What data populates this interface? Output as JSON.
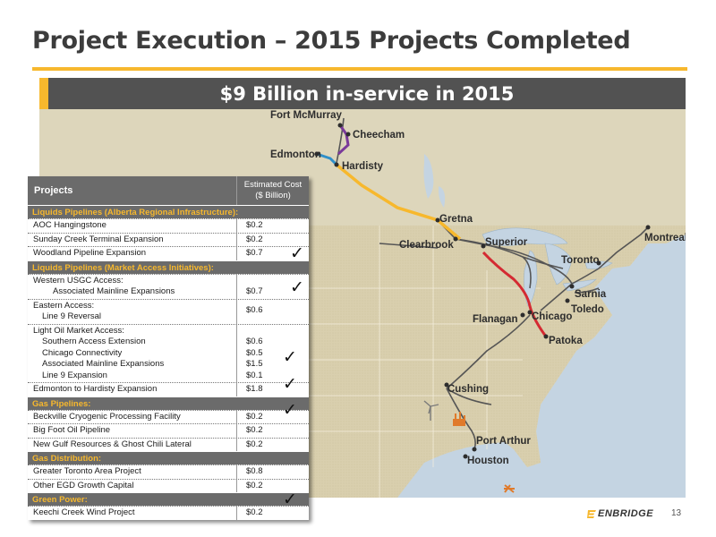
{
  "slide": {
    "title": "Project Execution – 2015 Projects Completed",
    "banner": "$9 Billion in-service in 2015",
    "page_number": "13",
    "logo_text": "ENBRIDGE"
  },
  "colors": {
    "accent": "#f7b82d",
    "header_gray": "#525252",
    "table_gray": "#6b6b6b",
    "map_land": "#d8cfae",
    "map_land_canada": "#ddd6bb",
    "map_water": "#c4d4e2",
    "pipeline_orange": "#f7b82d",
    "pipeline_red": "#d42a32",
    "pipeline_purple": "#7a3a9a",
    "pipeline_blue": "#2e8fc9",
    "pipeline_existing": "#555555"
  },
  "map": {
    "cities": [
      "Fort McMurray",
      "Cheecham",
      "Edmonton",
      "Hardisty",
      "Gretna",
      "Clearbrook",
      "Superior",
      "Montreal",
      "Toronto",
      "Sarnia",
      "Toledo",
      "Chicago",
      "Flanagan",
      "Patoka",
      "Cushing",
      "Port Arthur",
      "Houston"
    ],
    "icons": [
      "wind-turbine-icon",
      "gas-plant-icon",
      "offshore-platform-icon"
    ]
  },
  "table": {
    "header_project": "Projects",
    "header_cost_line1": "Estimated Cost",
    "header_cost_line2": "($ Billion)",
    "sections": [
      {
        "title": "Liquids Pipelines (Alberta Regional Infrastructure):",
        "rows": [
          {
            "name": "AOC Hangingstone",
            "cost": "$0.2"
          },
          {
            "name": "Sunday Creek Terminal Expansion",
            "cost": "$0.2"
          },
          {
            "name": "Woodland Pipeline Expansion",
            "cost": "$0.7"
          }
        ]
      },
      {
        "title": "Liquids Pipelines (Market Access Initiatives):",
        "western_label": "Western USGC Access:",
        "western_item": "Associated Mainline Expansions",
        "western_cost": "$0.7",
        "eastern_label": "Eastern Access:",
        "eastern_item": "Line 9 Reversal",
        "eastern_cost": "$0.6",
        "light_label": "Light Oil Market Access:",
        "light_items": [
          "Southern Access Extension",
          "Chicago Connectivity",
          "Associated Mainline Expansions",
          "Line 9 Expansion"
        ],
        "light_costs": [
          "$0.6",
          "$0.5",
          "$1.5",
          "$0.1"
        ],
        "hardisty": {
          "name": "Edmonton to Hardisty Expansion",
          "cost": "$1.8"
        }
      },
      {
        "title": "Gas Pipelines:",
        "rows": [
          {
            "name": "Beckville Cryogenic Processing Facility",
            "cost": "$0.2"
          },
          {
            "name": "Big Foot Oil Pipeline",
            "cost": "$0.2"
          },
          {
            "name": "New Gulf Resources & Ghost Chili Lateral",
            "cost": "$0.2"
          }
        ]
      },
      {
        "title": "Gas Distribution:",
        "rows": [
          {
            "name": "Greater Toronto Area Project",
            "cost": "$0.8"
          },
          {
            "name": "Other EGD Growth  Capital",
            "cost": "$0.2"
          }
        ]
      },
      {
        "title": "Green Power:",
        "rows": [
          {
            "name": "Keechi Creek Wind Project",
            "cost": "$0.2"
          }
        ]
      }
    ]
  }
}
